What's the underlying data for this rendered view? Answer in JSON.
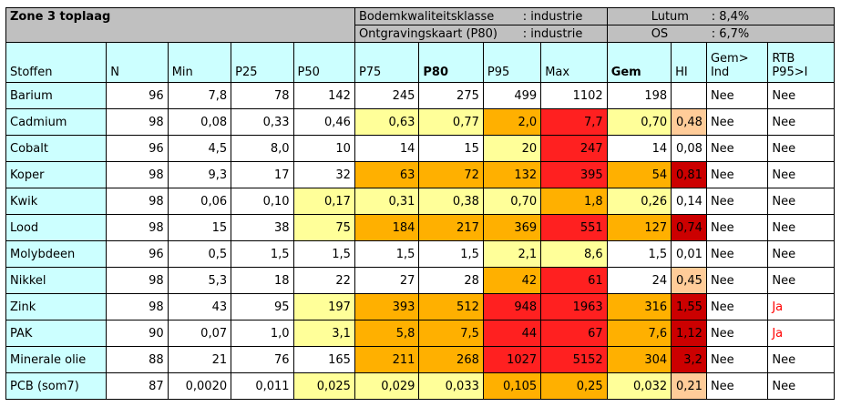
{
  "title": "Zone 3 toplaag",
  "info": {
    "bkk_label": "Bodemkwaliteitsklasse",
    "bkk_value": ": industrie",
    "okk_label": "Ontgravingskaart (P80)",
    "okk_value": ": industrie",
    "lutum_label": "Lutum",
    "lutum_value": ": 8,4%",
    "os_label": "OS",
    "os_value": ": 6,7%"
  },
  "columns": [
    "Stoffen",
    "N",
    "Min",
    "P25",
    "P50",
    "P75",
    "P80",
    "P95",
    "Max",
    "Gem",
    "HI",
    "Gem>\nInd",
    "RTB\nP95>I"
  ],
  "colors": {
    "cyan": "#ccffff",
    "grey": "#c0c0c0",
    "lightyellow": "#ffff99",
    "orange": "#ffb000",
    "red": "#ff2020",
    "darkred": "#cc0000",
    "peach": "#ffcc99",
    "lightgreen": "#ccffcc"
  },
  "rows": [
    {
      "cells": [
        "Barium",
        "96",
        "7,8",
        "78",
        "142",
        "245",
        "275",
        "499",
        "1102",
        "198",
        "",
        "Nee",
        "Nee"
      ],
      "bg": [
        "cyan",
        "white",
        "white",
        "white",
        "white",
        "white",
        "white",
        "white",
        "white",
        "white",
        "white",
        "white",
        "white"
      ]
    },
    {
      "cells": [
        "Cadmium",
        "98",
        "0,08",
        "0,33",
        "0,46",
        "0,63",
        "0,77",
        "2,0",
        "7,7",
        "0,70",
        "0,48",
        "Nee",
        "Nee"
      ],
      "bg": [
        "cyan",
        "white",
        "white",
        "white",
        "white",
        "lightyellow",
        "lightyellow",
        "orange",
        "red",
        "lightyellow",
        "peach",
        "white",
        "white"
      ]
    },
    {
      "cells": [
        "Cobalt",
        "96",
        "4,5",
        "8,0",
        "10",
        "14",
        "15",
        "20",
        "247",
        "14",
        "0,08",
        "Nee",
        "Nee"
      ],
      "bg": [
        "cyan",
        "white",
        "white",
        "white",
        "white",
        "white",
        "white",
        "lightyellow",
        "red",
        "white",
        "white",
        "white",
        "white"
      ]
    },
    {
      "cells": [
        "Koper",
        "98",
        "9,3",
        "17",
        "32",
        "63",
        "72",
        "132",
        "395",
        "54",
        "0,81",
        "Nee",
        "Nee"
      ],
      "bg": [
        "cyan",
        "white",
        "white",
        "white",
        "white",
        "orange",
        "orange",
        "orange",
        "red",
        "orange",
        "darkred",
        "white",
        "white"
      ]
    },
    {
      "cells": [
        "Kwik",
        "98",
        "0,06",
        "0,10",
        "0,17",
        "0,31",
        "0,38",
        "0,70",
        "1,8",
        "0,26",
        "0,14",
        "Nee",
        "Nee"
      ],
      "bg": [
        "cyan",
        "white",
        "white",
        "white",
        "lightyellow",
        "lightyellow",
        "lightyellow",
        "lightyellow",
        "orange",
        "lightyellow",
        "white",
        "white",
        "white"
      ]
    },
    {
      "cells": [
        "Lood",
        "98",
        "15",
        "38",
        "75",
        "184",
        "217",
        "369",
        "551",
        "127",
        "0,74",
        "Nee",
        "Nee"
      ],
      "bg": [
        "cyan",
        "white",
        "white",
        "white",
        "lightyellow",
        "orange",
        "orange",
        "orange",
        "red",
        "orange",
        "darkred",
        "white",
        "white"
      ]
    },
    {
      "cells": [
        "Molybdeen",
        "96",
        "0,5",
        "1,5",
        "1,5",
        "1,5",
        "1,5",
        "2,1",
        "8,6",
        "1,5",
        "0,01",
        "Nee",
        "Nee"
      ],
      "bg": [
        "cyan",
        "white",
        "white",
        "white",
        "white",
        "white",
        "white",
        "lightyellow",
        "lightyellow",
        "white",
        "white",
        "white",
        "white"
      ]
    },
    {
      "cells": [
        "Nikkel",
        "98",
        "5,3",
        "18",
        "22",
        "27",
        "28",
        "42",
        "61",
        "24",
        "0,45",
        "Nee",
        "Nee"
      ],
      "bg": [
        "cyan",
        "white",
        "white",
        "white",
        "white",
        "white",
        "white",
        "orange",
        "red",
        "white",
        "peach",
        "white",
        "white"
      ]
    },
    {
      "cells": [
        "Zink",
        "98",
        "43",
        "95",
        "197",
        "393",
        "512",
        "948",
        "1963",
        "316",
        "1,55",
        "Nee",
        "Ja"
      ],
      "bg": [
        "cyan",
        "white",
        "white",
        "white",
        "lightyellow",
        "orange",
        "orange",
        "red",
        "red",
        "orange",
        "darkred",
        "white",
        "white"
      ]
    },
    {
      "cells": [
        "PAK",
        "90",
        "0,07",
        "1,0",
        "3,1",
        "5,8",
        "7,5",
        "44",
        "67",
        "7,6",
        "1,12",
        "Nee",
        "Ja"
      ],
      "bg": [
        "cyan",
        "white",
        "white",
        "white",
        "lightyellow",
        "orange",
        "orange",
        "red",
        "red",
        "orange",
        "darkred",
        "white",
        "white"
      ]
    },
    {
      "cells": [
        "Minerale olie",
        "88",
        "21",
        "76",
        "165",
        "211",
        "268",
        "1027",
        "5152",
        "304",
        "3,2",
        "Nee",
        "Nee"
      ],
      "bg": [
        "cyan",
        "white",
        "white",
        "white",
        "white",
        "orange",
        "orange",
        "red",
        "red",
        "orange",
        "darkred",
        "white",
        "white"
      ]
    },
    {
      "cells": [
        "PCB (som7)",
        "87",
        "0,0020",
        "0,011",
        "0,025",
        "0,029",
        "0,033",
        "0,105",
        "0,25",
        "0,032",
        "0,21",
        "Nee",
        "Nee"
      ],
      "bg": [
        "cyan",
        "white",
        "white",
        "white",
        "lightyellow",
        "lightyellow",
        "lightyellow",
        "orange",
        "orange",
        "lightyellow",
        "peach",
        "white",
        "white"
      ]
    }
  ]
}
